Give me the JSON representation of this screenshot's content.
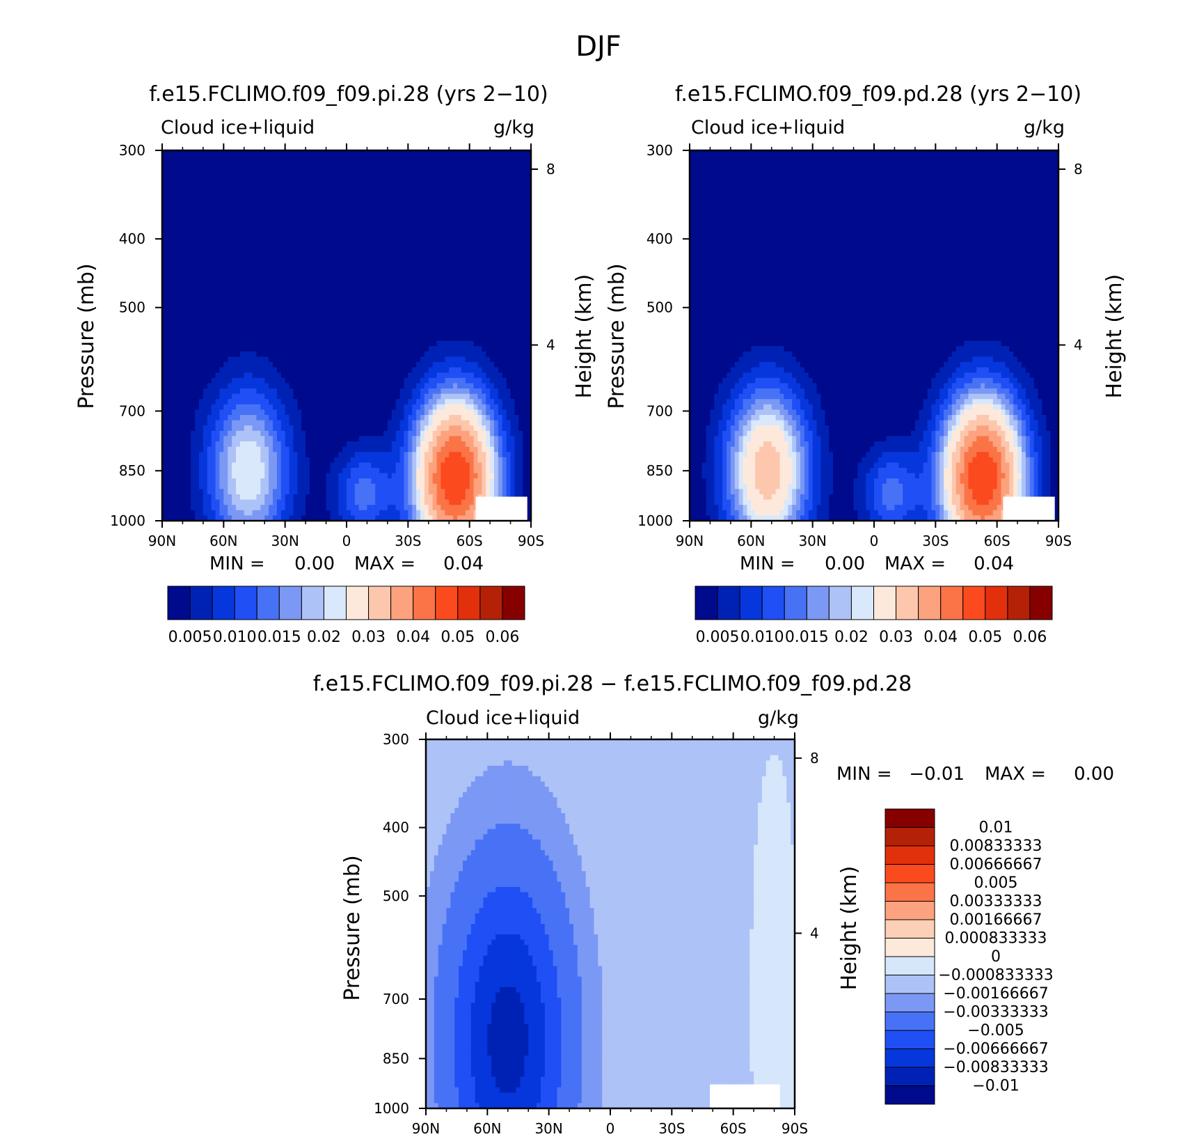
{
  "figure_title": "DJF",
  "colors": {
    "seq_palette": [
      "#000a8c",
      "#0022b4",
      "#0637dc",
      "#1f4ff5",
      "#4872f6",
      "#7b98f5",
      "#adc2f7",
      "#d9e8fb",
      "#fde9db",
      "#fdc7ad",
      "#fca27e",
      "#fb7447",
      "#fb4a1e",
      "#e3300c",
      "#b52107",
      "#870000"
    ],
    "diff_palette": [
      "#000a8c",
      "#0022b4",
      "#0637dc",
      "#1f4ff5",
      "#4872f6",
      "#7b98f5",
      "#adc2f7",
      "#d6e6fb",
      "#fde9d9",
      "#fcd0b6",
      "#fca27e",
      "#fb7447",
      "#fb4a1e",
      "#e3300c",
      "#b52107",
      "#870000"
    ]
  },
  "chart_data": [
    {
      "type": "contour",
      "id": "pi",
      "title": "f.e15.FCLIMO.f09_f09.pi.28 (yrs 2−10)",
      "left_label": "Cloud ice+liquid",
      "right_label": "g/kg",
      "xlabel": "",
      "ylabel": "Pressure (mb)",
      "y2label": "Height (km)",
      "xticks": [
        "90N",
        "60N",
        "30N",
        "0",
        "30S",
        "60S",
        "90S"
      ],
      "xlim": [
        90,
        -90
      ],
      "yticks": [
        "300",
        "400",
        "500",
        "700",
        "850",
        "1000"
      ],
      "ylim": [
        300,
        1000
      ],
      "y2ticks": [
        "8",
        "4"
      ],
      "min_label": "MIN =",
      "min_value": "0.00",
      "max_label": "MAX =",
      "max_value": "0.04",
      "colorbar_labels": [
        "0.005",
        "0.010",
        "0.015",
        "0.02",
        "0.03",
        "0.04",
        "0.05",
        "0.06"
      ],
      "features": [
        {
          "lat": 48,
          "p": 850,
          "peak": 0.02
        },
        {
          "lat": -53,
          "p": 870,
          "peak": 0.045
        },
        {
          "lat": -8,
          "p": 915,
          "peak": 0.011
        }
      ]
    },
    {
      "type": "contour",
      "id": "pd",
      "title": "f.e15.FCLIMO.f09_f09.pd.28 (yrs 2−10)",
      "left_label": "Cloud ice+liquid",
      "right_label": "g/kg",
      "xlabel": "",
      "ylabel": "Pressure (mb)",
      "y2label": "Height (km)",
      "xticks": [
        "90N",
        "60N",
        "30N",
        "0",
        "30S",
        "60S",
        "90S"
      ],
      "xlim": [
        90,
        -90
      ],
      "yticks": [
        "300",
        "400",
        "500",
        "700",
        "850",
        "1000"
      ],
      "ylim": [
        300,
        1000
      ],
      "y2ticks": [
        "8",
        "4"
      ],
      "min_label": "MIN =",
      "min_value": "0.00",
      "max_label": "MAX =",
      "max_value": "0.04",
      "colorbar_labels": [
        "0.005",
        "0.010",
        "0.015",
        "0.02",
        "0.03",
        "0.04",
        "0.05",
        "0.06"
      ],
      "features": [
        {
          "lat": 52,
          "p": 850,
          "peak": 0.028
        },
        {
          "lat": -53,
          "p": 870,
          "peak": 0.045
        },
        {
          "lat": -8,
          "p": 915,
          "peak": 0.011
        }
      ]
    },
    {
      "type": "contour",
      "id": "diff",
      "title": "f.e15.FCLIMO.f09_f09.pi.28 − f.e15.FCLIMO.f09_f09.pd.28",
      "left_label": "Cloud ice+liquid",
      "right_label": "g/kg",
      "xlabel": "",
      "ylabel": "Pressure (mb)",
      "y2label": "Height (km)",
      "xticks": [
        "90N",
        "60N",
        "30N",
        "0",
        "30S",
        "60S",
        "90S"
      ],
      "xlim": [
        90,
        -90
      ],
      "yticks": [
        "300",
        "400",
        "500",
        "700",
        "850",
        "1000"
      ],
      "ylim": [
        300,
        1000
      ],
      "y2ticks": [
        "8",
        "4"
      ],
      "min_label": "MIN =",
      "min_value": "−0.01",
      "max_label": "MAX =",
      "max_value": "0.00",
      "colorbar_labels": [
        "0.01",
        "0.00833333",
        "0.00666667",
        "0.005",
        "0.00333333",
        "0.00166667",
        "0.000833333",
        "0",
        "−0.000833333",
        "−0.00166667",
        "−0.00333333",
        "−0.005",
        "−0.00666667",
        "−0.00833333",
        "−0.01"
      ],
      "features": [
        {
          "lat": 50,
          "p": 800,
          "peak": -0.007
        },
        {
          "lat": -80,
          "p": 700,
          "peak": 0.001
        }
      ]
    }
  ]
}
